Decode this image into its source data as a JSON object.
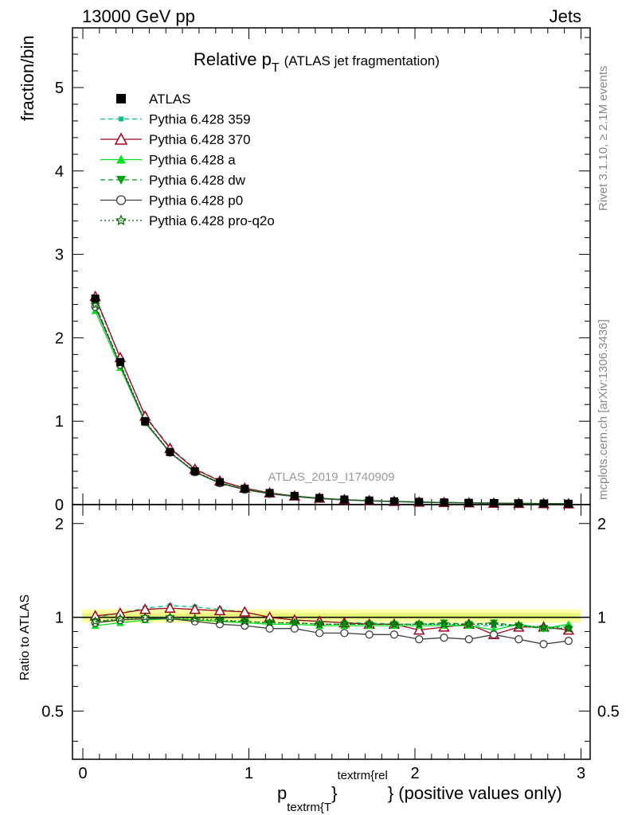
{
  "header": {
    "left": "13000 GeV pp",
    "right": "Jets"
  },
  "title": {
    "main": "Relative p",
    "sub": "T",
    "tail": "(ATLAS jet fragmentation)"
  },
  "side_labels": {
    "rivet": "Rivet 3.1.10, ≥ 2.1M events",
    "mcplots": "mcplots.cern.ch [arXiv:1306.3436]"
  },
  "watermark": "ATLAS_2019_I1740909",
  "axes": {
    "main_ylabel": "fraction/bin",
    "ratio_ylabel": "Ratio to ATLAS",
    "xlabel_p": "p",
    "xlabel_sub": "textrm{T",
    "xlabel_sup": "textrm{rel",
    "xlabel_brace": "}",
    "xlabel_tail": "} (positive values only)",
    "main_yticks": [
      "0",
      "1",
      "2",
      "3",
      "4",
      "5"
    ],
    "ratio_yticks": [
      "0.5",
      "1",
      "2"
    ],
    "xticks": [
      "0",
      "1",
      "2",
      "3"
    ]
  },
  "colors": {
    "ATLAS": "#000000",
    "p359": "#00c080",
    "p370": "#a00020",
    "pa": "#00e020",
    "pdw": "#00a010",
    "pp0": "#404040",
    "pq2o": "#006400",
    "band": "#ffff80"
  },
  "chart_data": {
    "type": "line",
    "xlabel": "p_{textrm{T}}^{textrm{rel}} (positive values only)",
    "ylabel": "fraction/bin",
    "xlim": [
      -0.05,
      3.05
    ],
    "ylim": [
      0,
      5.7
    ],
    "ratio_ylim": [
      0.35,
      2.3
    ],
    "x": [
      0.075,
      0.225,
      0.375,
      0.525,
      0.675,
      0.825,
      0.975,
      1.125,
      1.275,
      1.425,
      1.575,
      1.725,
      1.875,
      2.025,
      2.175,
      2.325,
      2.475,
      2.625,
      2.775,
      2.925
    ],
    "atlas": [
      2.47,
      1.71,
      1.0,
      0.63,
      0.4,
      0.27,
      0.19,
      0.14,
      0.105,
      0.08,
      0.062,
      0.05,
      0.04,
      0.033,
      0.027,
      0.022,
      0.019,
      0.016,
      0.013,
      0.011
    ],
    "series": [
      {
        "name": "Pythia 6.428 359",
        "color_key": "p359",
        "marker": "square-small",
        "dash": "6,4",
        "ratio": [
          1.0,
          1.03,
          1.07,
          1.09,
          1.08,
          1.06,
          1.04,
          1.0,
          0.98,
          0.97,
          0.96,
          0.96,
          0.95,
          0.95,
          0.95,
          0.94,
          0.94,
          0.94,
          0.93,
          0.93
        ]
      },
      {
        "name": "Pythia 6.428 370",
        "color_key": "p370",
        "marker": "triangle-open",
        "dash": "",
        "ratio": [
          1.01,
          1.03,
          1.06,
          1.07,
          1.06,
          1.05,
          1.04,
          1.0,
          0.98,
          0.97,
          0.96,
          0.95,
          0.95,
          0.91,
          0.93,
          0.95,
          0.88,
          0.93,
          0.93,
          0.91
        ]
      },
      {
        "name": "Pythia 6.428 a",
        "color_key": "pa",
        "marker": "triangle-filled",
        "dash": "",
        "ratio": [
          0.94,
          0.96,
          0.98,
          0.99,
          0.98,
          0.97,
          0.96,
          0.95,
          0.95,
          0.94,
          0.94,
          0.94,
          0.94,
          0.94,
          0.94,
          0.94,
          0.91,
          0.95,
          0.92,
          0.95
        ]
      },
      {
        "name": "Pythia 6.428 dw",
        "color_key": "pdw",
        "marker": "triangle-down",
        "dash": "6,4",
        "ratio": [
          0.97,
          0.98,
          0.99,
          0.99,
          0.98,
          0.97,
          0.97,
          0.96,
          0.96,
          0.95,
          0.95,
          0.95,
          0.95,
          0.95,
          0.96,
          0.95,
          0.96,
          0.94,
          0.92,
          0.92
        ]
      },
      {
        "name": "Pythia 6.428 p0",
        "color_key": "pp0",
        "marker": "circle-open",
        "dash": "",
        "ratio": [
          0.96,
          0.98,
          0.99,
          0.99,
          0.97,
          0.95,
          0.94,
          0.92,
          0.92,
          0.89,
          0.89,
          0.88,
          0.88,
          0.85,
          0.86,
          0.85,
          0.88,
          0.85,
          0.82,
          0.84
        ]
      },
      {
        "name": "Pythia 6.428 pro-q2o",
        "color_key": "pq2o",
        "marker": "star-open",
        "dash": "2,3",
        "ratio": [
          0.97,
          0.99,
          1.0,
          1.0,
          0.99,
          0.98,
          0.97,
          0.96,
          0.96,
          0.95,
          0.95,
          0.95,
          0.95,
          0.95,
          0.95,
          0.95,
          0.95,
          0.94,
          0.93,
          0.92
        ]
      }
    ],
    "legend": [
      "ATLAS",
      "Pythia 6.428 359",
      "Pythia 6.428 370",
      "Pythia 6.428 a",
      "Pythia 6.428 dw",
      "Pythia 6.428 p0",
      "Pythia 6.428 pro-q2o"
    ],
    "legend_position": "top-left"
  }
}
